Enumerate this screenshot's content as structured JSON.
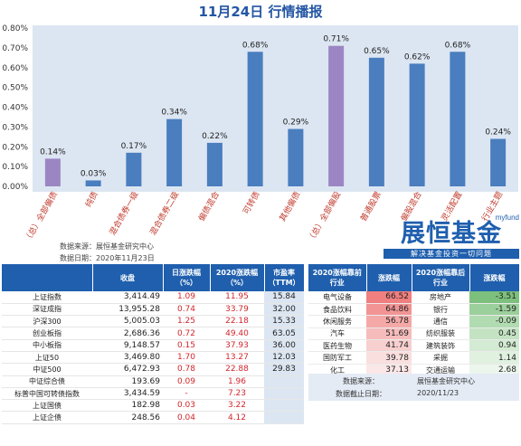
{
  "title": "11月24日  行情播报",
  "chart_data": {
    "type": "bar",
    "categories": [
      "（总）全部偏债",
      "纯债",
      "混合债券一级",
      "混合债券二级",
      "偏债混合",
      "可转债",
      "其他偏债",
      "（总）全部偏股",
      "普通股票",
      "偏股混合",
      "灵活配置",
      "行业主题"
    ],
    "values": [
      0.14,
      0.03,
      0.17,
      0.34,
      0.22,
      0.68,
      0.29,
      0.71,
      0.65,
      0.62,
      0.68,
      0.24
    ],
    "value_labels": [
      "0.14%",
      "0.03%",
      "0.17%",
      "0.34%",
      "0.22%",
      "0.68%",
      "0.29%",
      "0.71%",
      "0.65%",
      "0.62%",
      "0.68%",
      "0.24%"
    ],
    "highlight": [
      true,
      false,
      false,
      false,
      false,
      false,
      false,
      true,
      false,
      false,
      false,
      false
    ],
    "yticks": [
      "0.00%",
      "0.10%",
      "0.20%",
      "0.30%",
      "0.40%",
      "0.50%",
      "0.60%",
      "0.70%",
      "0.80%"
    ],
    "ylim": [
      0,
      0.8
    ],
    "grid": false,
    "colors": {
      "bar": "#4a7ebf",
      "highlight": "#9b86c3",
      "panel": "#dce6f2",
      "label": "#c0392b"
    }
  },
  "source_lines": [
    "数据来源：展恒基金研究中心",
    "数据日期：2020年11月23日"
  ],
  "logo": {
    "main": "展恒基金",
    "sup": "myfund",
    "tagline": "解决基金投资一切问题",
    "color": "#1f5fae"
  },
  "market_table": {
    "headers": [
      "",
      "收盘",
      "日涨跌幅\n（%）",
      "2020涨跌幅\n（%）",
      "市盈率\n（TTM）"
    ],
    "rows": [
      {
        "name": "上证指数",
        "close": "3,414.49",
        "day": "1.09",
        "ytd": "11.95",
        "pe": "15.84"
      },
      {
        "name": "深证成指",
        "close": "13,955.28",
        "day": "0.74",
        "ytd": "33.79",
        "pe": "32.00"
      },
      {
        "name": "沪深300",
        "close": "5,005.03",
        "day": "1.25",
        "ytd": "22.18",
        "pe": "15.33"
      },
      {
        "name": "创业板指",
        "close": "2,686.36",
        "day": "0.72",
        "ytd": "49.40",
        "pe": "63.05"
      },
      {
        "name": "中小板指",
        "close": "9,148.57",
        "day": "0.15",
        "ytd": "37.93",
        "pe": "36.00"
      },
      {
        "name": "上证50",
        "close": "3,469.80",
        "day": "1.70",
        "ytd": "13.27",
        "pe": "12.03"
      },
      {
        "name": "中证500",
        "close": "6,472.93",
        "day": "0.78",
        "ytd": "22.88",
        "pe": "29.83"
      },
      {
        "name": "中证综合债",
        "close": "193.69",
        "day": "0.09",
        "ytd": "1.96",
        "pe": ""
      },
      {
        "name": "标普中国可转债指数",
        "close": "3,434.59",
        "day": "-",
        "ytd": "7.23",
        "pe": ""
      },
      {
        "name": "上证国债",
        "close": "182.98",
        "day": "0.03",
        "ytd": "3.22",
        "pe": ""
      },
      {
        "name": "上证企债",
        "close": "248.56",
        "day": "0.04",
        "ytd": "4.12",
        "pe": ""
      }
    ]
  },
  "sector_table": {
    "headers": [
      "2020涨幅靠前\n行业",
      "涨跌幅",
      "2020涨幅靠后\n行业",
      "涨跌幅"
    ],
    "rows": [
      {
        "top": "电气设备",
        "top_v": "66.52",
        "bot": "房地产",
        "bot_v": "-3.51"
      },
      {
        "top": "食品饮料",
        "top_v": "64.86",
        "bot": "银行",
        "bot_v": "-1.59"
      },
      {
        "top": "休闲服务",
        "top_v": "56.78",
        "bot": "通信",
        "bot_v": "-0.09"
      },
      {
        "top": "汽车",
        "top_v": "51.69",
        "bot": "纺织服装",
        "bot_v": "0.45"
      },
      {
        "top": "医药生物",
        "top_v": "41.74",
        "bot": "建筑装饰",
        "bot_v": "0.94"
      },
      {
        "top": "国防军工",
        "top_v": "39.78",
        "bot": "采掘",
        "bot_v": "1.14"
      },
      {
        "top": "化工",
        "top_v": "37.13",
        "bot": "交通运输",
        "bot_v": "2.68"
      }
    ],
    "top_colors": [
      "#f07f7f",
      "#f29494",
      "#f4a8a8",
      "#f6bcbc",
      "#f8cfcf",
      "#fadfdf",
      "#fbe7e7"
    ],
    "bot_colors": [
      "#7dc07d",
      "#9bcf9b",
      "#b1dbb1",
      "#c3e3c3",
      "#d3ead3",
      "#e0f1e0",
      "#ecf6ec"
    ]
  },
  "sector_note": {
    "source_label": "数据来源：",
    "source": "展恒基金研究中心",
    "date_label": "数据截止日期：",
    "date": "2020/11/23"
  }
}
